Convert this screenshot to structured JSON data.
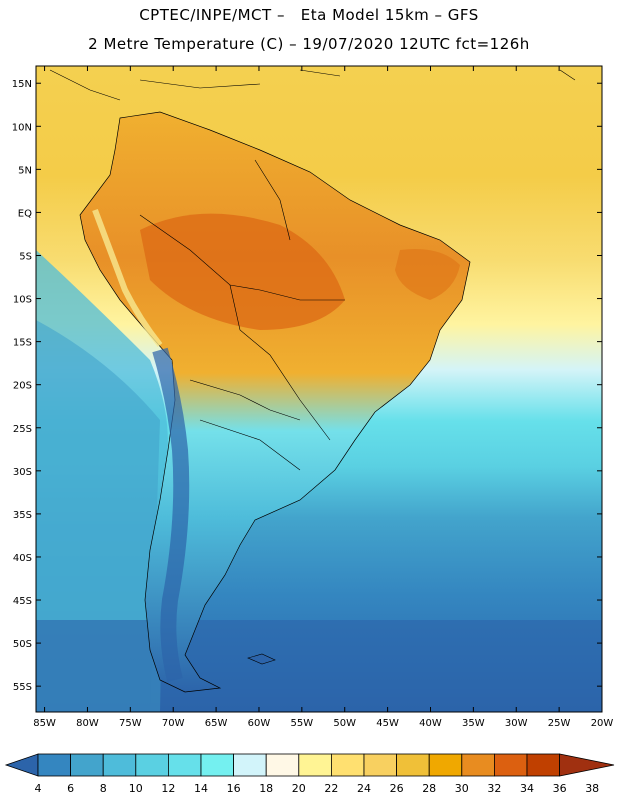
{
  "header": {
    "title_line1": "CPTEC/INPE/MCT –   Eta Model 15km – GFS",
    "title_line2": "2 Metre Temperature (C) – 19/07/2020 12UTC fct=126h"
  },
  "map": {
    "lat_labels": [
      "15N",
      "10N",
      "5N",
      "EQ",
      "5S",
      "10S",
      "15S",
      "20S",
      "25S",
      "30S",
      "35S",
      "40S",
      "45S",
      "50S",
      "55S"
    ],
    "lat_values": [
      15,
      10,
      5,
      0,
      -5,
      -10,
      -15,
      -20,
      -25,
      -30,
      -35,
      -40,
      -45,
      -50,
      -55
    ],
    "lon_labels": [
      "85W",
      "80W",
      "75W",
      "70W",
      "65W",
      "60W",
      "55W",
      "50W",
      "45W",
      "40W",
      "35W",
      "30W",
      "25W",
      "20W"
    ],
    "lon_values": [
      -85,
      -80,
      -75,
      -70,
      -65,
      -60,
      -55,
      -50,
      -45,
      -40,
      -35,
      -30,
      -25,
      -20
    ],
    "lat_range": [
      -58,
      17
    ],
    "lon_range": [
      -86,
      -20
    ]
  },
  "colorbar": {
    "colors": [
      "#2c64aa",
      "#3486c0",
      "#43a4cc",
      "#4ebcda",
      "#5ad0e2",
      "#66e0ea",
      "#74f0f0",
      "#d2f4fa",
      "#fff8e6",
      "#fff494",
      "#ffe070",
      "#f8d060",
      "#f0c038",
      "#f0a800",
      "#e88c20",
      "#dc6010",
      "#c04000",
      "#a03010"
    ],
    "labels": [
      "4",
      "6",
      "8",
      "10",
      "12",
      "14",
      "16",
      "18",
      "20",
      "22",
      "24",
      "26",
      "28",
      "30",
      "32",
      "34",
      "36",
      "38"
    ]
  }
}
